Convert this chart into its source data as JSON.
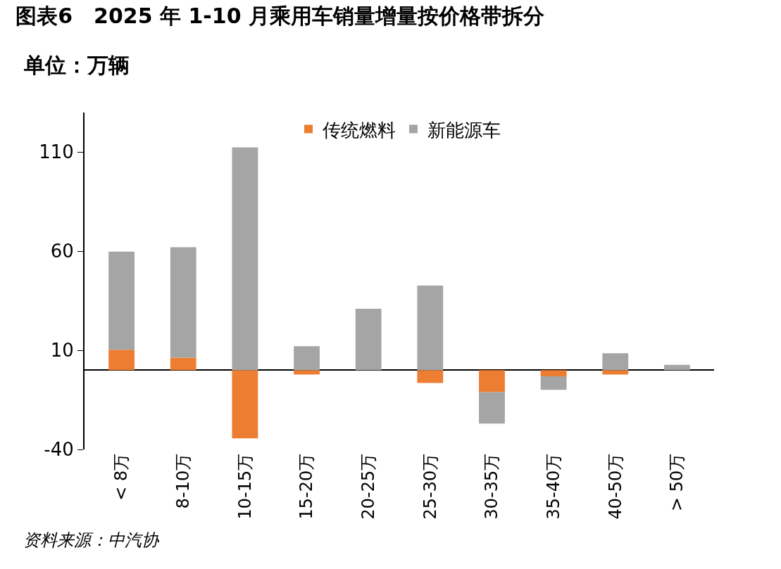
{
  "chart_data": {
    "type": "bar",
    "title": "图表6　2025 年 1-10 月乘用车销量增量按价格带拆分",
    "subtitle": "单位：万辆",
    "categories": [
      "< 8万",
      "8-10万",
      "10-15万",
      "15-20万",
      "20-25万",
      "25-30万",
      "30-35万",
      "35-40万",
      "40-50万",
      "> 50万"
    ],
    "series": [
      {
        "name": "传统燃料",
        "color": "#ed7d31",
        "values": [
          10.3,
          6.3,
          -34.4,
          -2.2,
          0,
          -6.5,
          -11.1,
          -3.1,
          -2.2,
          0
        ]
      },
      {
        "name": "新能源车",
        "color": "#a5a5a5",
        "values": [
          49.5,
          55.7,
          112.4,
          12.1,
          31,
          42.7,
          -15.9,
          -6.8,
          8.5,
          2.7
        ]
      }
    ],
    "stacked": true,
    "ylim": [
      -40,
      130
    ],
    "yticks": [
      -40,
      10,
      60,
      110
    ],
    "grid": false,
    "legend": "top",
    "annotations": [
      "资料来源：中汽协"
    ]
  }
}
